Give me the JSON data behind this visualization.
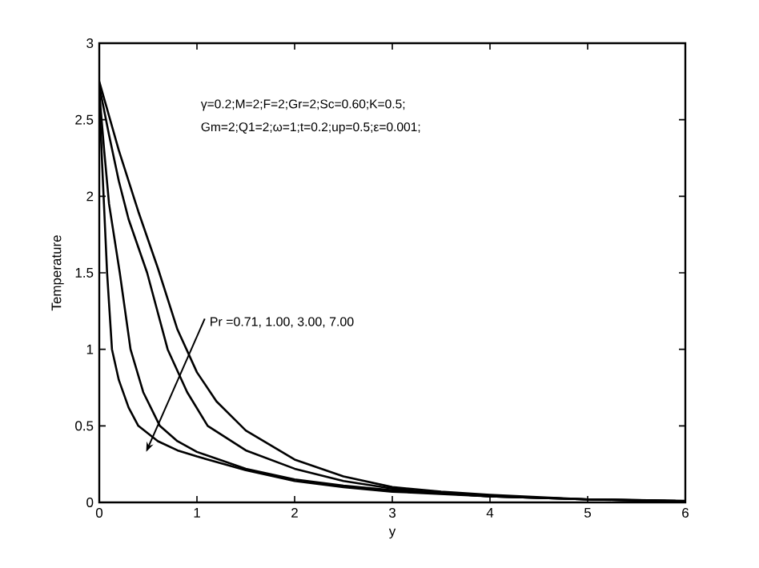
{
  "chart_data": {
    "type": "line",
    "xlabel": "y",
    "ylabel": "Temperature",
    "xlim": [
      0,
      6
    ],
    "ylim": [
      0,
      3
    ],
    "xticks": [
      0,
      1,
      2,
      3,
      4,
      5,
      6
    ],
    "yticks": [
      0,
      0.5,
      1,
      1.5,
      2,
      2.5,
      3
    ],
    "annotations": [
      "γ=0.2;M=2;F=2;Gr=2;Sc=0.60;K=0.5;",
      "Gm=2;Q1=2;ω=1;t=0.2;up=0.5;ε=0.001;",
      "Pr =0.71, 1.00, 3.00, 7.00"
    ],
    "series": [
      {
        "color": "#000000",
        "x": [
          0,
          0.2,
          0.4,
          0.6,
          0.8,
          1.0,
          1.2,
          1.5,
          2,
          2.5,
          3,
          3.5,
          4,
          5,
          6
        ],
        "values": [
          2.75,
          2.3,
          1.9,
          1.53,
          1.13,
          0.85,
          0.66,
          0.47,
          0.28,
          0.17,
          0.1,
          0.07,
          0.05,
          0.02,
          0.01
        ]
      },
      {
        "color": "#000000",
        "x": [
          0,
          0.1,
          0.2,
          0.3,
          0.49,
          0.7,
          0.9,
          1.11,
          1.5,
          2,
          2.5,
          3,
          3.5,
          4,
          5,
          5.9
        ],
        "values": [
          2.72,
          2.4,
          2.1,
          1.85,
          1.5,
          1.0,
          0.72,
          0.5,
          0.34,
          0.22,
          0.14,
          0.09,
          0.06,
          0.04,
          0.02,
          0.01
        ]
      },
      {
        "color": "#000000",
        "x": [
          0,
          0.05,
          0.1,
          0.21,
          0.32,
          0.45,
          0.62,
          0.8,
          1,
          1.5,
          2,
          2.5,
          3,
          4,
          5,
          5.8
        ],
        "values": [
          2.68,
          2.3,
          1.95,
          1.5,
          1.0,
          0.72,
          0.5,
          0.4,
          0.33,
          0.22,
          0.15,
          0.11,
          0.08,
          0.04,
          0.02,
          0.01
        ]
      },
      {
        "color": "#000000",
        "x": [
          0,
          0.03,
          0.08,
          0.13,
          0.2,
          0.3,
          0.4,
          0.6,
          0.8,
          1,
          1.5,
          2,
          2.5,
          3,
          4,
          5,
          5.7
        ],
        "values": [
          2.65,
          2.2,
          1.5,
          1.0,
          0.8,
          0.62,
          0.5,
          0.4,
          0.34,
          0.3,
          0.21,
          0.14,
          0.1,
          0.07,
          0.04,
          0.02,
          0.01
        ]
      }
    ]
  }
}
